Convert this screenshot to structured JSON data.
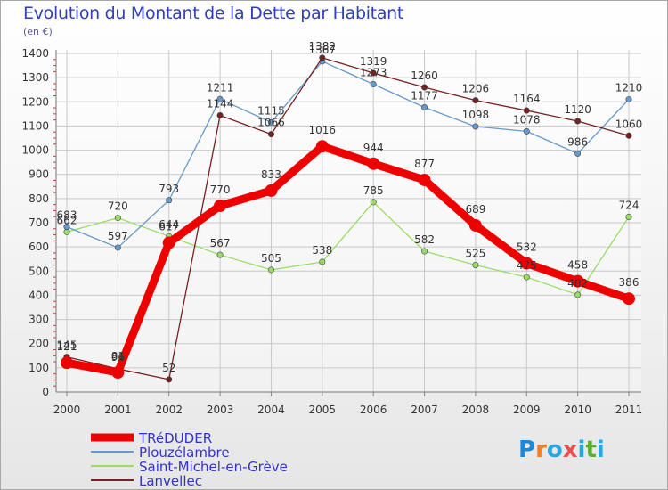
{
  "chart_data": {
    "type": "line",
    "title": "Evolution du Montant de la Dette par Habitant",
    "subtitle": "(en €)",
    "x": [
      "2000",
      "2001",
      "2002",
      "2003",
      "2004",
      "2005",
      "2006",
      "2007",
      "2008",
      "2009",
      "2010",
      "2011"
    ],
    "ylim": [
      0,
      1400
    ],
    "yticks": [
      0,
      100,
      200,
      300,
      400,
      500,
      600,
      700,
      800,
      900,
      1000,
      1100,
      1200,
      1300,
      1400
    ],
    "grid": true,
    "legend_position": "bottom-left",
    "series": [
      {
        "name": "TRéDUDER",
        "color": "#ee0000",
        "values": [
          121,
          81,
          617,
          770,
          833,
          1016,
          944,
          877,
          689,
          532,
          458,
          386
        ]
      },
      {
        "name": "Plouzélambre",
        "color": "#6699cc",
        "values": [
          683,
          597,
          793,
          1211,
          1115,
          1367,
          1273,
          1177,
          1098,
          1078,
          986,
          1210
        ]
      },
      {
        "name": "Saint-Michel-en-Grève",
        "color": "#99dd66",
        "values": [
          662,
          720,
          644,
          567,
          505,
          538,
          785,
          582,
          525,
          475,
          402,
          724
        ]
      },
      {
        "name": "Lanvellec",
        "color": "#772222",
        "values": [
          145,
          96,
          52,
          1144,
          1066,
          1382,
          1319,
          1260,
          1206,
          1164,
          1120,
          1060
        ]
      }
    ]
  },
  "logo": {
    "letters": [
      "P",
      "r",
      "o",
      "x",
      "i",
      "t",
      "i"
    ]
  }
}
